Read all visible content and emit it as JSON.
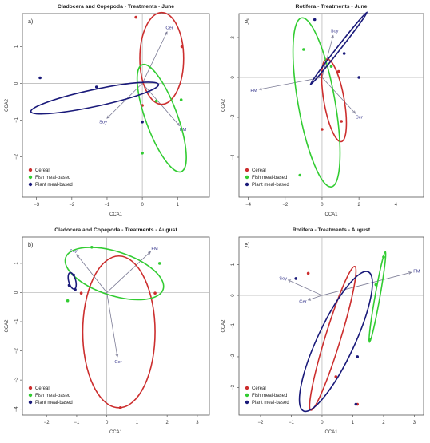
{
  "figure": {
    "panels": [
      {
        "id": "a",
        "title": "Cladocera and Copepoda - Treatments - June",
        "panel_label": "a)"
      },
      {
        "id": "d",
        "title": "Rotifera - Treatments - June",
        "panel_label": "d)"
      },
      {
        "id": "b",
        "title": "Cladocera and Copepoda - Treatments - August",
        "panel_label": "b)"
      },
      {
        "id": "e",
        "title": "Rotifera - Treatments - August",
        "panel_label": "e)"
      }
    ]
  },
  "colors": {
    "cereal": "#cc2e2e",
    "fish": "#32cc32",
    "plant": "#1a1a7a",
    "arrow": "#7b7b95",
    "vector_label": "#33338a",
    "reference_line": "#b0b0b0",
    "axis": "#555555"
  },
  "chart_data": [
    {
      "panel": "a",
      "type": "scatter",
      "title": "Cladocera and Copepoda - Treatments - June",
      "xlabel": "CCA1",
      "ylabel": "CCA2",
      "xlim": [
        -3.4,
        1.9
      ],
      "ylim": [
        -3.1,
        1.9
      ],
      "xticks": [
        -3,
        -2,
        -1,
        0,
        1
      ],
      "yticks": [
        -2,
        -1,
        0,
        1
      ],
      "legend": {
        "position": "bottom-left",
        "entries": [
          "Cereal",
          "Fish meal-based",
          "Plant meal-based"
        ]
      },
      "vectors": [
        {
          "label": "Cer",
          "x": 0.7,
          "y": 1.4
        },
        {
          "label": "Soy",
          "x": -1.0,
          "y": -0.95
        },
        {
          "label": "FM",
          "x": 1.05,
          "y": -1.15
        }
      ],
      "series": [
        {
          "name": "Cereal",
          "points": [
            [
              -0.18,
              1.8
            ],
            [
              1.12,
              1.0
            ],
            [
              0.0,
              -0.6
            ]
          ],
          "ellipse": {
            "cx": 0.55,
            "cy": 0.68,
            "rx": 0.62,
            "ry": 1.25,
            "angle": 0
          }
        },
        {
          "name": "Fish meal-based",
          "points": [
            [
              0.4,
              -0.48
            ],
            [
              1.1,
              -0.45
            ],
            [
              0.0,
              -1.9
            ]
          ],
          "ellipse": {
            "cx": 0.55,
            "cy": -0.95,
            "rx": 0.45,
            "ry": 1.55,
            "angle": -20
          }
        },
        {
          "name": "Plant meal-based",
          "points": [
            [
              -2.9,
              0.15
            ],
            [
              -1.3,
              -0.1
            ],
            [
              0.0,
              -1.05
            ]
          ],
          "ellipse": {
            "cx": -1.35,
            "cy": -0.4,
            "rx": 1.85,
            "ry": 0.23,
            "angle": -12
          }
        }
      ]
    },
    {
      "panel": "d",
      "type": "scatter",
      "title": "Rotifera - Treatments - June",
      "xlabel": "CCA1",
      "ylabel": "CCA2",
      "xlim": [
        -4.5,
        5.5
      ],
      "ylim": [
        -6.0,
        3.2
      ],
      "xticks": [
        -4,
        -2,
        0,
        2,
        4
      ],
      "yticks": [
        -4,
        -2,
        0,
        2
      ],
      "legend": {
        "position": "bottom-left",
        "entries": [
          "Cereal",
          "Fish meal-based",
          "Plant meal-based"
        ]
      },
      "vectors": [
        {
          "label": "Soy",
          "x": 0.6,
          "y": 2.1
        },
        {
          "label": "FM",
          "x": -3.4,
          "y": -0.6
        },
        {
          "label": "Cer",
          "x": 1.8,
          "y": -1.8
        }
      ],
      "series": [
        {
          "name": "Cereal",
          "points": [
            [
              0.9,
              0.3
            ],
            [
              1.05,
              -2.2
            ],
            [
              0.0,
              -2.6
            ]
          ],
          "ellipse": {
            "cx": 0.65,
            "cy": -1.15,
            "rx": 0.55,
            "ry": 2.1,
            "angle": -10
          }
        },
        {
          "name": "Fish meal-based",
          "points": [
            [
              -1.0,
              1.4
            ],
            [
              0.5,
              0.55
            ],
            [
              -1.2,
              -4.9
            ]
          ],
          "ellipse": {
            "cx": -0.3,
            "cy": -1.25,
            "rx": 1.0,
            "ry": 4.3,
            "angle": -10
          }
        },
        {
          "name": "Plant meal-based",
          "points": [
            [
              -0.4,
              2.9
            ],
            [
              1.2,
              1.2
            ],
            [
              2.0,
              0.0
            ]
          ],
          "ellipse": {
            "cx": 0.9,
            "cy": 1.45,
            "rx": 2.5,
            "ry": 0.09,
            "angle": -52
          }
        }
      ]
    },
    {
      "panel": "b",
      "type": "scatter",
      "title": "Cladocera and Copepoda - Treatments - August",
      "xlabel": "CCA1",
      "ylabel": "CCA2",
      "xlim": [
        -2.8,
        3.4
      ],
      "ylim": [
        -4.2,
        1.9
      ],
      "xticks": [
        -2,
        -1,
        0,
        1,
        2,
        3
      ],
      "yticks": [
        -4,
        -3,
        -2,
        -1,
        0,
        1
      ],
      "legend": {
        "position": "bottom-left",
        "entries": [
          "Cereal",
          "Fish meal-based",
          "Plant meal-based"
        ]
      },
      "vectors": [
        {
          "label": "Soy",
          "x": -1.0,
          "y": 1.3
        },
        {
          "label": "FM",
          "x": 1.45,
          "y": 1.4
        },
        {
          "label": "Cer",
          "x": 0.35,
          "y": -2.2
        }
      ],
      "series": [
        {
          "name": "Cereal",
          "points": [
            [
              -0.85,
              -0.02
            ],
            [
              1.6,
              -0.02
            ],
            [
              0.45,
              -3.95
            ]
          ],
          "ellipse": {
            "cx": 0.4,
            "cy": -1.35,
            "rx": 1.2,
            "ry": 2.6,
            "angle": 0
          }
        },
        {
          "name": "Fish meal-based",
          "points": [
            [
              -0.5,
              1.55
            ],
            [
              1.75,
              1.0
            ],
            [
              -1.3,
              -0.28
            ]
          ],
          "ellipse": {
            "cx": 0.25,
            "cy": 0.65,
            "rx": 1.7,
            "ry": 0.75,
            "angle": 18
          }
        },
        {
          "name": "Plant meal-based",
          "points": [
            [
              -1.25,
              0.25
            ],
            [
              -1.05,
              0.1
            ],
            [
              -1.1,
              0.6
            ]
          ],
          "ellipse": {
            "cx": -1.15,
            "cy": 0.4,
            "rx": 0.28,
            "ry": 0.12,
            "angle": 75
          }
        }
      ]
    },
    {
      "panel": "e",
      "type": "scatter",
      "title": "Rotifera - Treatments - August",
      "xlabel": "CCA1",
      "ylabel": "CCA2",
      "xlim": [
        -2.7,
        3.3
      ],
      "ylim": [
        -3.9,
        1.9
      ],
      "xticks": [
        -2,
        -1,
        0,
        1,
        2,
        3
      ],
      "yticks": [
        -3,
        -2,
        -1,
        0,
        1
      ],
      "legend": {
        "position": "bottom-left",
        "entries": [
          "Cereal",
          "Fish meal-based",
          "Plant meal-based"
        ]
      },
      "vectors": [
        {
          "label": "FM",
          "x": 2.9,
          "y": 0.75
        },
        {
          "label": "Soy",
          "x": -1.1,
          "y": 0.5
        },
        {
          "label": "Cer",
          "x": -0.45,
          "y": -0.15
        }
      ],
      "series": [
        {
          "name": "Cereal",
          "points": [
            [
              -0.45,
              0.72
            ],
            [
              0.45,
              -2.65
            ],
            [
              1.15,
              -3.55
            ]
          ],
          "ellipse": {
            "cx": 0.35,
            "cy": -1.4,
            "rx": 0.25,
            "ry": 2.45,
            "angle": 17
          }
        },
        {
          "name": "Fish meal-based",
          "points": [
            [
              2.0,
              1.25
            ],
            [
              1.75,
              0.35
            ],
            [
              1.55,
              -1.45
            ]
          ],
          "ellipse": {
            "cx": 1.8,
            "cy": -0.05,
            "rx": 0.08,
            "ry": 1.5,
            "angle": 10
          }
        },
        {
          "name": "Plant meal-based",
          "points": [
            [
              -0.85,
              0.55
            ],
            [
              1.15,
              -2.0
            ],
            [
              1.1,
              -3.55
            ]
          ],
          "ellipse": {
            "cx": 0.45,
            "cy": -1.5,
            "rx": 0.6,
            "ry": 2.5,
            "angle": 25
          }
        }
      ]
    }
  ]
}
